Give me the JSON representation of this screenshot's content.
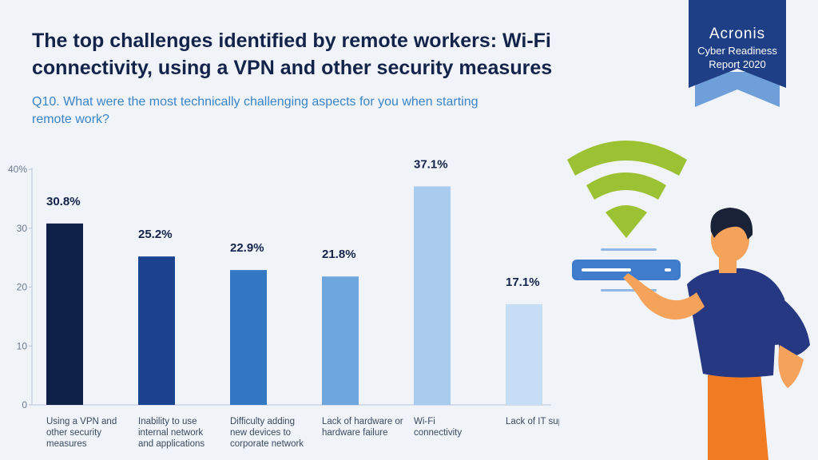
{
  "title": "The top challenges identified by remote workers: Wi-Fi connectivity, using a VPN and other security measures",
  "subtitle": "Q10. What were the most technically challenging aspects for you when starting remote work?",
  "badge": {
    "brand": "Acronis",
    "line1": "Cyber Readiness",
    "line2": "Report 2020",
    "colors": {
      "ribbon": "#1e3f86",
      "shadow": "#6f9fd8"
    }
  },
  "chart_data": {
    "type": "bar",
    "title": "",
    "xlabel": "",
    "ylabel": "",
    "ylim": [
      0,
      40
    ],
    "yticks": [
      0,
      10,
      20,
      30,
      40
    ],
    "ytick_labels": [
      "0",
      "10",
      "20",
      "30",
      "40%"
    ],
    "grid": false,
    "categories": [
      [
        "Using a VPN and",
        "other security",
        "measures"
      ],
      [
        "Inability to use",
        "internal network",
        "and applications"
      ],
      [
        "Difficulty adding",
        "new devices to",
        "corporate network"
      ],
      [
        "Lack of hardware or",
        "hardware failure"
      ],
      [
        "Wi-Fi",
        "connectivity"
      ],
      [
        "Lack of IT support"
      ]
    ],
    "values": [
      30.8,
      25.2,
      22.9,
      21.8,
      37.1,
      17.1
    ],
    "value_labels": [
      "30.8%",
      "25.2%",
      "22.9%",
      "21.8%",
      "37.1%",
      "17.1%"
    ],
    "colors": [
      "#0f2147",
      "#1b4390",
      "#3378c3",
      "#6da6dd",
      "#a9cbee",
      "#c6def5"
    ]
  }
}
